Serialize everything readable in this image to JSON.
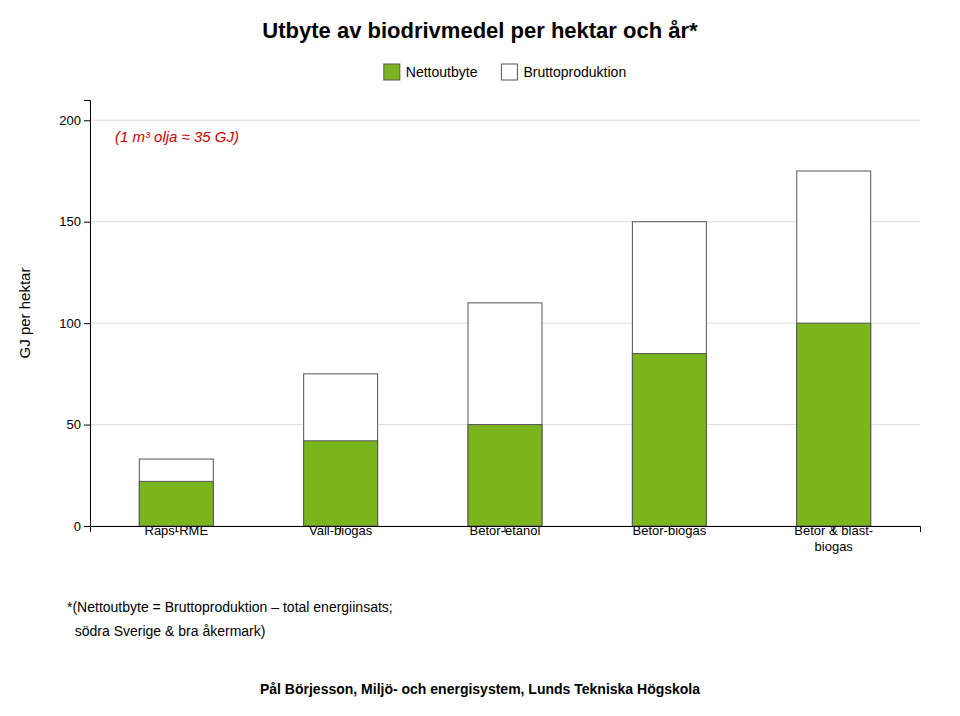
{
  "chart_data": {
    "type": "bar",
    "title": "Utbyte av biodrivmedel per hektar och år*",
    "ylabel": "GJ per hektar",
    "categories": [
      "Raps-RME",
      "Vall-biogas",
      "Betor-etanol",
      "Betor-biogas",
      "Betor & blast-\nbiogas"
    ],
    "series": [
      {
        "name": "Nettoutbyte",
        "color": "#7ab51d",
        "values": [
          22,
          42,
          50,
          85,
          100
        ]
      },
      {
        "name": "Bruttoproduktion",
        "color": "#ffffff",
        "values": [
          33,
          75,
          110,
          150,
          175
        ]
      }
    ],
    "ylim": [
      0,
      210
    ],
    "yticks": [
      0,
      50,
      100,
      150,
      200
    ],
    "grid": true,
    "legend": "top",
    "annotation": "(1 m³ olja ≈ 35 GJ)",
    "footnotes": [
      "*(Nettoutbyte = Bruttoproduktion – total energiinsats;",
      "  södra Sverige & bra åkermark)",
      "Pål Börjesson, Miljö- och energisystem, Lunds Tekniska Högskola"
    ]
  }
}
